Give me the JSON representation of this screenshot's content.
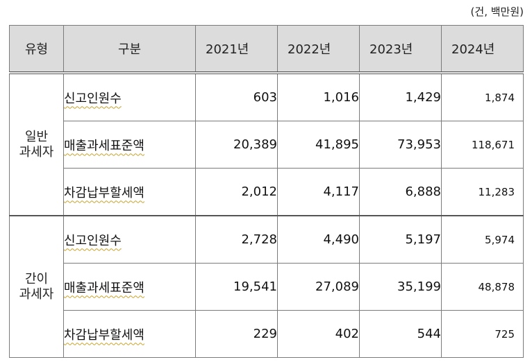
{
  "unit_note": "(건, 백만원)",
  "headers": {
    "type": "유형",
    "category": "구분",
    "years": [
      "2021년",
      "2022년",
      "2023년",
      "2024년"
    ]
  },
  "groups": [
    {
      "type_line1": "일반",
      "type_line2": "과세자",
      "rows": [
        {
          "label": "신고인원수",
          "values": [
            "603",
            "1,016",
            "1,429",
            "1,874"
          ]
        },
        {
          "label": "매출과세표준액",
          "values": [
            "20,389",
            "41,895",
            "73,953",
            "118,671"
          ]
        },
        {
          "label": "차감납부할세액",
          "values": [
            "2,012",
            "4,117",
            "6,888",
            "11,283"
          ]
        }
      ]
    },
    {
      "type_line1": "간이",
      "type_line2": "과세자",
      "rows": [
        {
          "label": "신고인원수",
          "values": [
            "2,728",
            "4,490",
            "5,197",
            "5,974"
          ]
        },
        {
          "label": "매출과세표준액",
          "values": [
            "19,541",
            "27,089",
            "35,199",
            "48,878"
          ]
        },
        {
          "label": "차감납부할세액",
          "values": [
            "229",
            "402",
            "544",
            "725"
          ]
        }
      ]
    }
  ]
}
